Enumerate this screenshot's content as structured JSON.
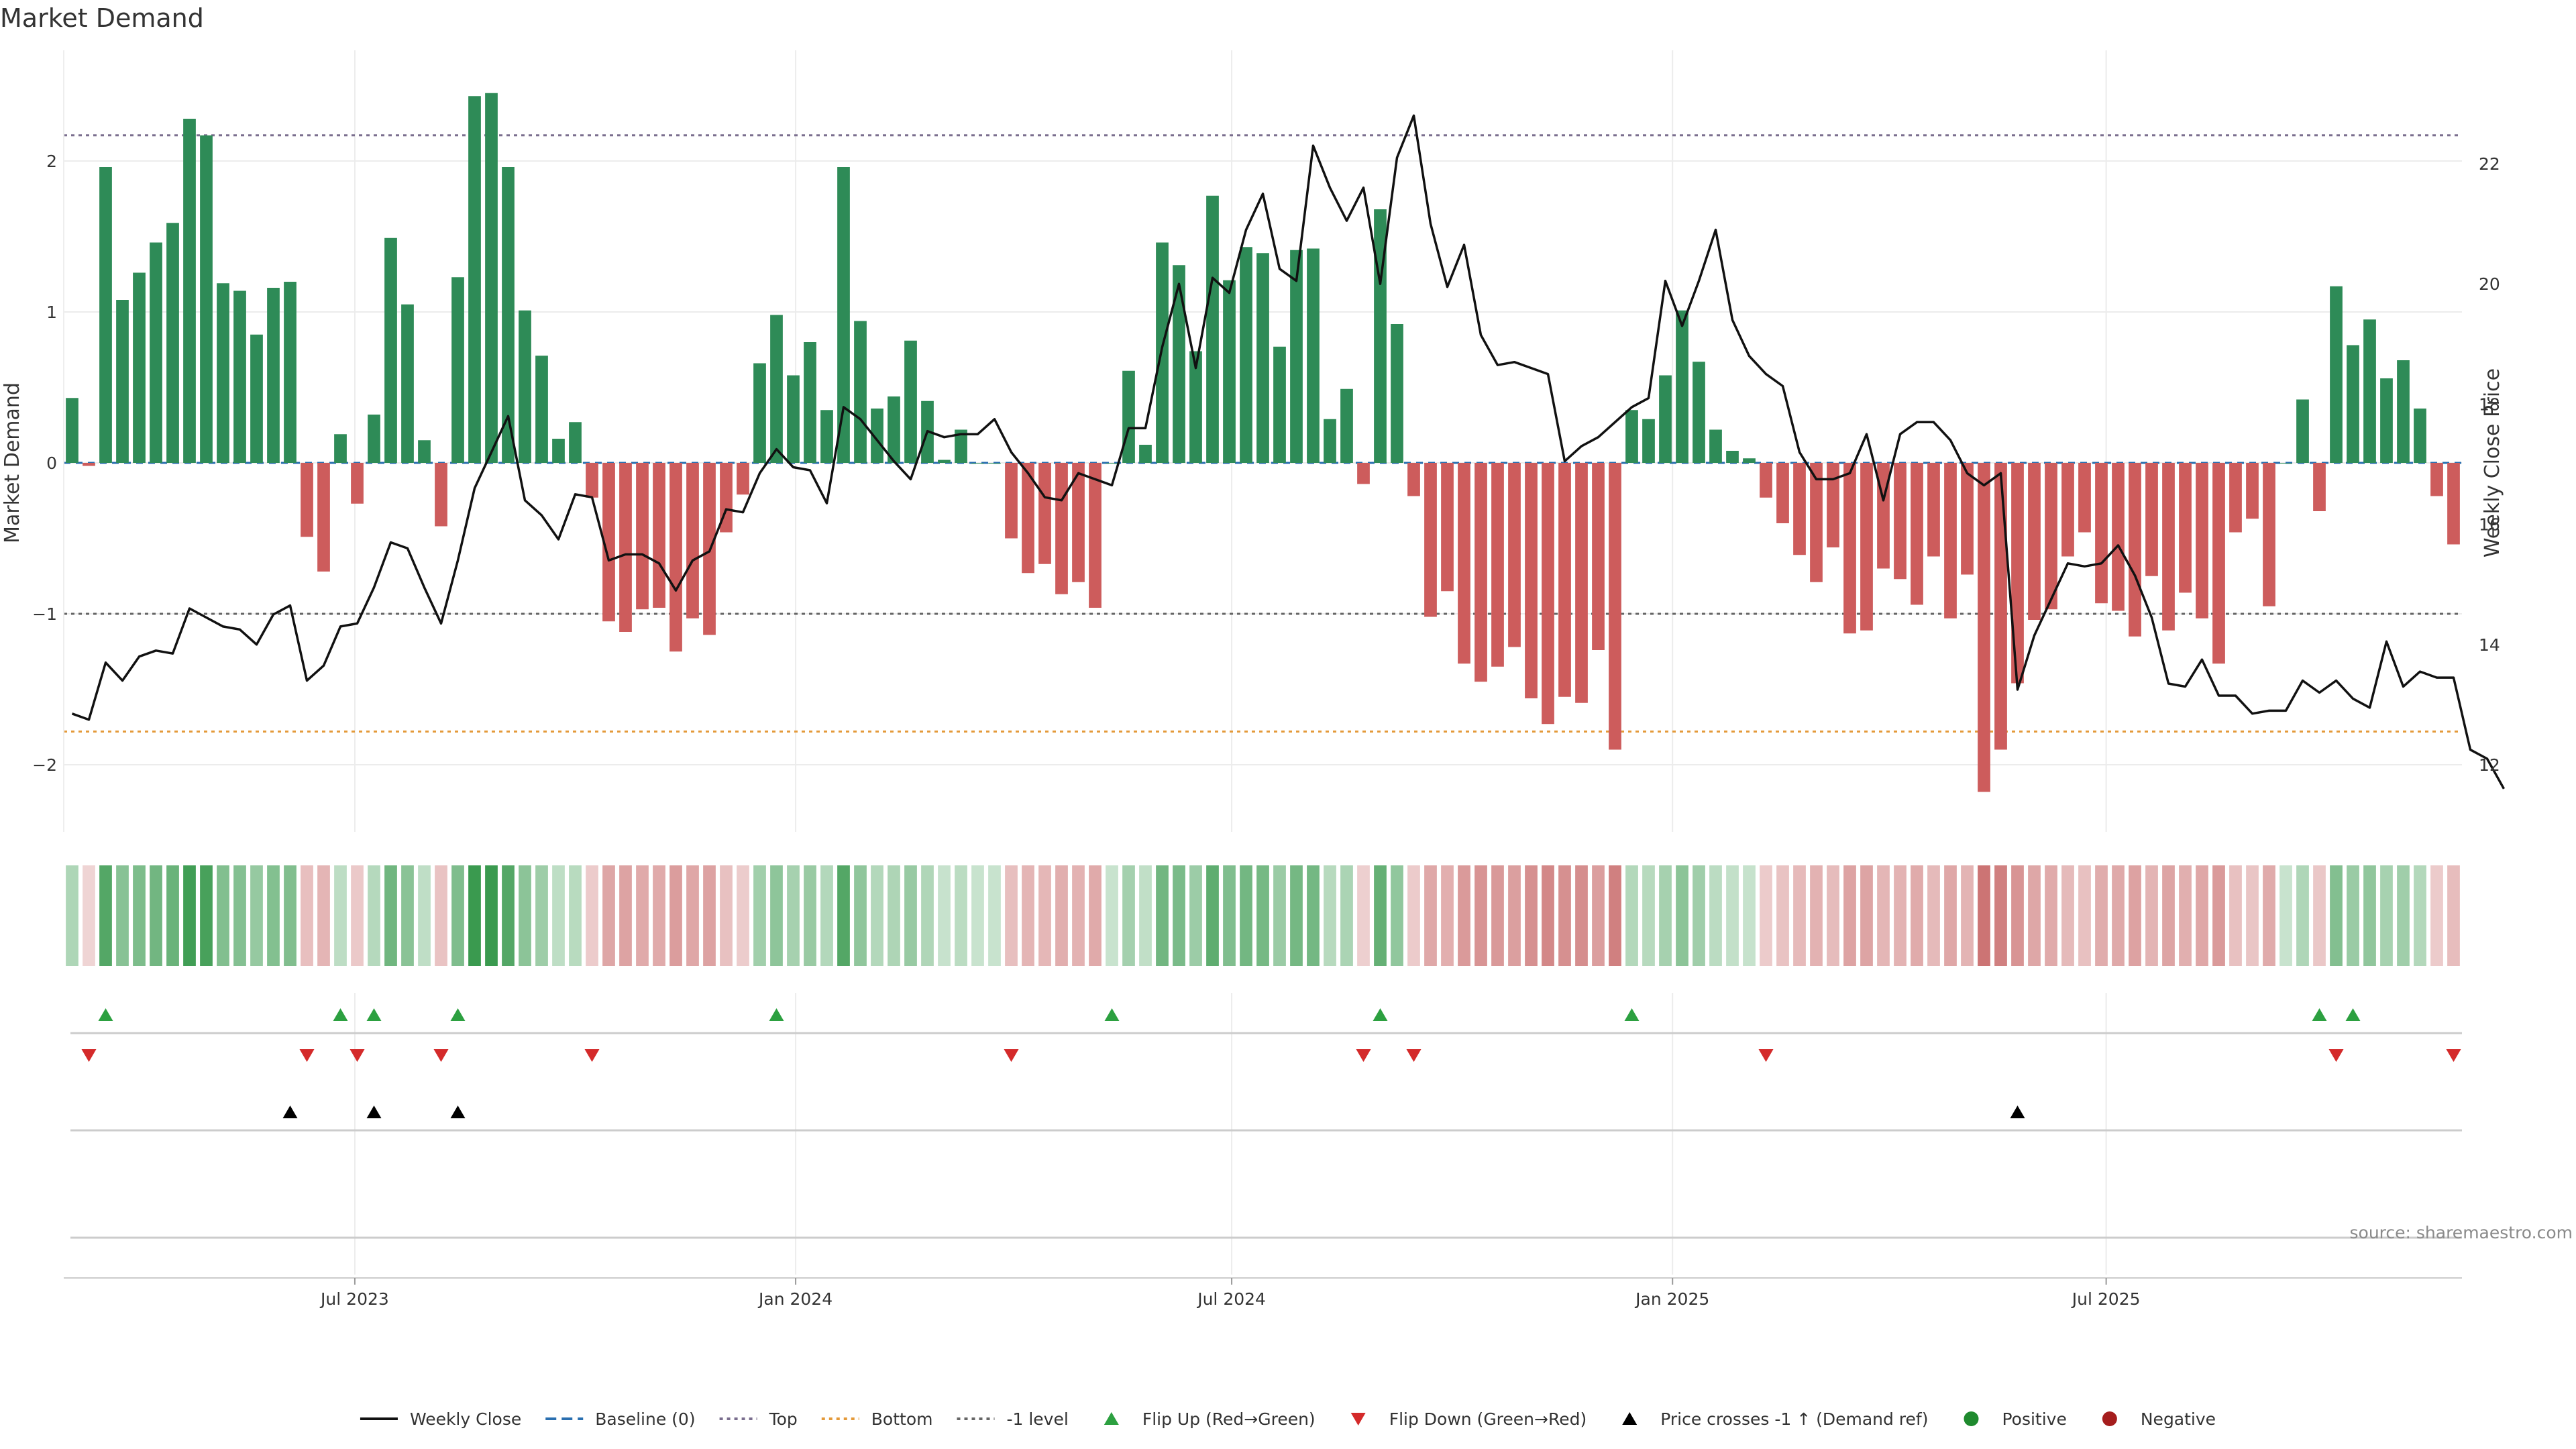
{
  "chart_data": {
    "type": "bar",
    "title": "Market Demand",
    "ylabel": "Market Demand",
    "ylabel_right": "Weekly Close Price",
    "source": "source: sharemaestro.com",
    "ylim": [
      -2.4,
      2.7
    ],
    "ylim_right": [
      11.25,
      24.3
    ],
    "yticks": [
      "−2",
      "−1",
      "0",
      "1",
      "2"
    ],
    "yticks_right": [
      "12",
      "14",
      "16",
      "18",
      "20",
      "22"
    ],
    "x_start": "2023-03-05",
    "week_days": 7,
    "x_ticks": [
      {
        "label": "Jul 2023",
        "date": "2023-07-01"
      },
      {
        "label": "Jan 2024",
        "date": "2024-01-01"
      },
      {
        "label": "Jul 2024",
        "date": "2024-07-01"
      },
      {
        "label": "Jan 2025",
        "date": "2025-01-01"
      },
      {
        "label": "Jul 2025",
        "date": "2025-07-01"
      }
    ],
    "top_level": 2.17,
    "bottom_level": -1.78,
    "minus_one_level": -1.0,
    "demand": [
      0.43,
      -0.02,
      1.96,
      1.08,
      1.26,
      1.46,
      1.59,
      2.28,
      2.17,
      1.19,
      1.14,
      0.85,
      1.16,
      1.2,
      -0.49,
      -0.72,
      0.19,
      -0.27,
      0.32,
      1.49,
      1.05,
      0.15,
      -0.42,
      1.23,
      2.43,
      2.45,
      1.96,
      1.01,
      0.71,
      0.16,
      0.27,
      -0.23,
      -1.05,
      -1.12,
      -0.97,
      -0.96,
      -1.25,
      -1.03,
      -1.14,
      -0.46,
      -0.21,
      0.66,
      0.98,
      0.58,
      0.8,
      0.35,
      1.96,
      0.94,
      0.36,
      0.44,
      0.81,
      0.41,
      0.02,
      0.22,
      0.0,
      0.0,
      -0.5,
      -0.73,
      -0.67,
      -0.87,
      -0.79,
      -0.96,
      0.0,
      0.61,
      0.12,
      1.46,
      1.31,
      0.74,
      1.77,
      1.21,
      1.43,
      1.39,
      0.77,
      1.41,
      1.42,
      0.29,
      0.49,
      -0.14,
      1.68,
      0.92,
      -0.22,
      -1.02,
      -0.85,
      -1.33,
      -1.45,
      -1.35,
      -1.22,
      -1.56,
      -1.73,
      -1.55,
      -1.59,
      -1.24,
      -1.9,
      0.35,
      0.29,
      0.58,
      1.01,
      0.67,
      0.22,
      0.08,
      0.03,
      -0.23,
      -0.4,
      -0.61,
      -0.79,
      -0.56,
      -1.13,
      -1.11,
      -0.7,
      -0.77,
      -0.94,
      -0.62,
      -1.03,
      -0.74,
      -2.18,
      -1.9,
      -1.46,
      -1.04,
      -0.97,
      -0.62,
      -0.46,
      -0.93,
      -0.98,
      -1.15,
      -0.75,
      -1.11,
      -0.86,
      -1.03,
      -1.33,
      -0.46,
      -0.37,
      -0.95,
      0.0,
      0.42,
      -0.32,
      1.17,
      0.78,
      0.95,
      0.56,
      0.68,
      0.36,
      -0.22,
      -0.54
    ],
    "series": [
      {
        "name": "Weekly Close",
        "values": [
          12.85,
          12.75,
          13.7,
          13.4,
          13.8,
          13.9,
          13.85,
          14.6,
          14.45,
          14.3,
          14.25,
          14.0,
          14.5,
          14.65,
          13.4,
          13.65,
          14.3,
          14.35,
          14.95,
          15.7,
          15.6,
          14.95,
          14.35,
          15.4,
          16.6,
          17.2,
          17.8,
          16.4,
          16.15,
          15.75,
          16.5,
          16.45,
          15.4,
          15.5,
          15.5,
          15.35,
          14.9,
          15.4,
          15.55,
          16.25,
          16.2,
          16.85,
          17.25,
          16.95,
          16.9,
          16.35,
          17.95,
          17.75,
          17.4,
          17.05,
          16.75,
          17.55,
          17.45,
          17.5,
          17.5,
          17.75,
          17.2,
          16.85,
          16.45,
          16.4,
          16.85,
          16.75,
          16.65,
          17.6,
          17.6,
          18.95,
          20.0,
          18.6,
          20.1,
          19.85,
          20.9,
          21.5,
          20.25,
          20.05,
          22.3,
          21.6,
          21.05,
          21.6,
          20.0,
          22.1,
          22.8,
          21.0,
          19.95,
          20.65,
          19.15,
          18.65,
          18.7,
          18.6,
          18.5,
          17.05,
          17.3,
          17.45,
          17.7,
          17.95,
          18.1,
          20.05,
          19.3,
          20.05,
          20.9,
          19.4,
          18.8,
          18.5,
          18.3,
          17.2,
          16.75,
          16.75,
          16.85,
          17.5,
          16.4,
          17.5,
          17.7,
          17.7,
          17.4,
          16.85,
          16.65,
          16.85,
          13.25,
          14.15,
          14.75,
          15.35,
          15.3,
          15.35,
          15.65,
          15.15,
          14.45,
          13.35,
          13.3,
          13.75,
          13.15,
          13.15,
          12.85,
          12.9,
          12.9,
          13.4,
          13.2,
          13.4,
          13.1,
          12.95,
          14.05,
          13.3,
          13.55,
          13.45,
          13.45,
          12.25,
          12.1,
          11.6
        ]
      }
    ],
    "heat_strips": {
      "pos_color": "#3a9a4f",
      "neg_color": "#c86a6a"
    },
    "flip_up_weeks": [
      2,
      16,
      18,
      23,
      42,
      62,
      78,
      93,
      134,
      136
    ],
    "flip_down_weeks": [
      1,
      14,
      17,
      22,
      31,
      56,
      77,
      80,
      101,
      135,
      142
    ],
    "price_cross_weeks": [
      13,
      18,
      23,
      116
    ],
    "colors": {
      "positive": "#2e8b57",
      "negative": "#cd5c5c",
      "price_line": "#111111",
      "baseline": "#2a6fb0",
      "top": "#7a6e8e",
      "bottom": "#e49a3a",
      "minus_one": "#666666",
      "flip_up": "#2ca040",
      "flip_down": "#d42a2a",
      "price_cross": "#000000",
      "pos_dot": "#1f8a2e",
      "neg_dot": "#a51d1d"
    },
    "legend": {
      "placement": "bottom-center",
      "entries": [
        {
          "key": "weekly_close",
          "label": "Weekly Close"
        },
        {
          "key": "baseline",
          "label": "Baseline (0)"
        },
        {
          "key": "top",
          "label": "Top"
        },
        {
          "key": "bottom",
          "label": "Bottom"
        },
        {
          "key": "minus_one",
          "label": "-1 level"
        },
        {
          "key": "flip_up",
          "label": "Flip Up (Red→Green)"
        },
        {
          "key": "flip_down",
          "label": "Flip Down (Green→Red)"
        },
        {
          "key": "price_cross",
          "label": "Price crosses -1 ↑ (Demand ref)"
        },
        {
          "key": "positive",
          "label": "Positive"
        },
        {
          "key": "negative",
          "label": "Negative"
        }
      ]
    }
  }
}
